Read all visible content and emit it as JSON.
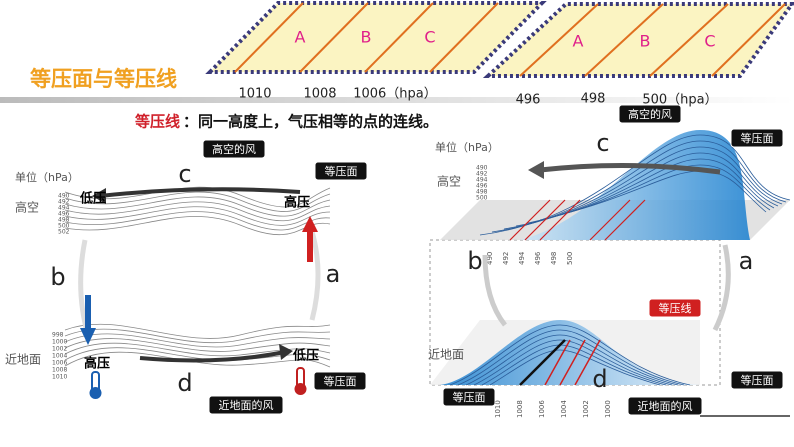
{
  "header": {
    "title": "等压面与等压线"
  },
  "definition": {
    "term": "等压线",
    "text": "：同一高度上，气压相等的点的连线。"
  },
  "surface_panel": {
    "labels": [
      "A",
      "B",
      "C"
    ],
    "values": [
      "1010",
      "1008",
      "1006（hpa）"
    ]
  },
  "upper_panel": {
    "labels": [
      "A",
      "B",
      "C"
    ],
    "values": [
      "496",
      "498",
      "500（hpa）"
    ]
  },
  "left_diagram": {
    "unit": "单位（hPa）",
    "upper": "高空",
    "lower": "近地面",
    "upper_ticks": [
      "490",
      "492",
      "494",
      "496",
      "498",
      "500",
      "502"
    ],
    "lower_ticks": [
      "998",
      "1000",
      "1002",
      "1004",
      "1006",
      "1008",
      "1010"
    ],
    "upper_low": "低压",
    "upper_high": "高压",
    "lower_high": "高压",
    "lower_low": "低压",
    "a": "a",
    "b": "b",
    "c": "c",
    "d": "d",
    "upper_wind": "高空的风",
    "upper_surface": "等压面",
    "lower_surface": "等压面",
    "lower_wind": "近地面的风"
  },
  "right_diagram": {
    "unit": "单位（hPa）",
    "upper": "高空",
    "lower": "近地面",
    "upper_ticks": [
      "490",
      "492",
      "494",
      "496",
      "498",
      "500"
    ],
    "plane_ticks": [
      "490",
      "492",
      "494",
      "496",
      "498",
      "500"
    ],
    "ground_ticks": [
      "1010",
      "1008",
      "1006",
      "1004",
      "1002",
      "1000"
    ],
    "a": "a",
    "b": "b",
    "c": "c",
    "d": "d",
    "upper_wind": "高空的风",
    "upper_surface": "等压面",
    "isobar": "等压线",
    "ground_surface_right": "等压面",
    "ground_surface_left": "等压面",
    "lower_wind": "近地面的风"
  }
}
